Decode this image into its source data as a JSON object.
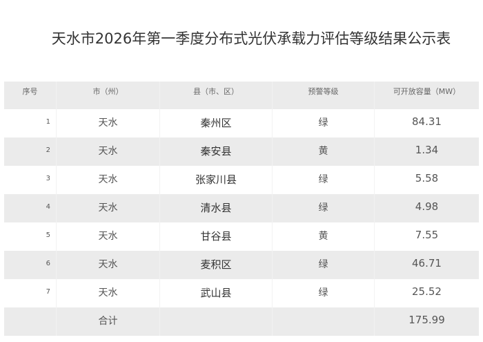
{
  "title": "天水市2026年第一季度分布式光伏承载力评估等级结果公示表",
  "headers": [
    "序号",
    "市（州）",
    "县（市、区）",
    "预警等级",
    "可开放容量（MW）"
  ],
  "rows": [
    [
      "1",
      "天水",
      "秦州区",
      "绿",
      "84.31"
    ],
    [
      "2",
      "天水",
      "秦安县",
      "黄",
      "1.34"
    ],
    [
      "3",
      "天水",
      "张家川县",
      "绿",
      "5.58"
    ],
    [
      "4",
      "天水",
      "清水县",
      "绿",
      "4.98"
    ],
    [
      "5",
      "天水",
      "甘谷县",
      "黄",
      "7.55"
    ],
    [
      "6",
      "天水",
      "麦积区",
      "绿",
      "46.71"
    ],
    [
      "7",
      "天水",
      "武山县",
      "绿",
      "25.52"
    ]
  ],
  "total": {
    "label": "合计",
    "value": "175.99"
  }
}
